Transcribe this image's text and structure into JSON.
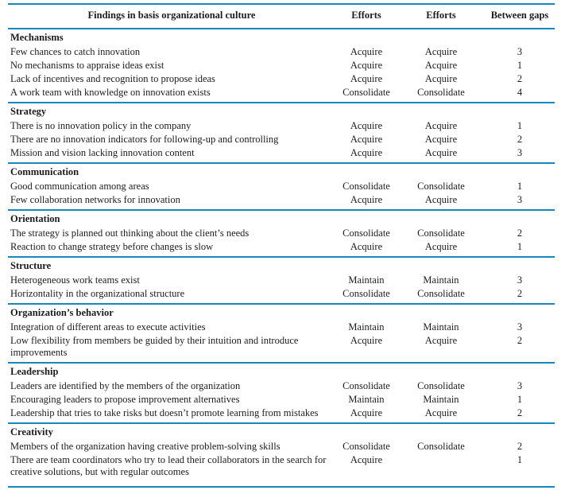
{
  "colors": {
    "rule": "#1787c0",
    "text": "#1c1c1c"
  },
  "table": {
    "headers": [
      "Findings in basis organizational culture",
      "Efforts",
      "Efforts",
      "Between gaps"
    ],
    "sections": [
      {
        "name": "Mechanisms",
        "rows": [
          {
            "finding": "Few chances to catch innovation",
            "effort1": "Acquire",
            "effort2": "Acquire",
            "gap": "3"
          },
          {
            "finding": "No mechanisms to appraise ideas exist",
            "effort1": "Acquire",
            "effort2": "Acquire",
            "gap": "1"
          },
          {
            "finding": "Lack of incentives and recognition to propose ideas",
            "effort1": "Acquire",
            "effort2": "Acquire",
            "gap": "2"
          },
          {
            "finding": "A work team with knowledge on innovation exists",
            "effort1": "Consolidate",
            "effort2": "Consolidate",
            "gap": "4"
          }
        ]
      },
      {
        "name": "Strategy",
        "rows": [
          {
            "finding": "There is no innovation policy in the company",
            "effort1": "Acquire",
            "effort2": "Acquire",
            "gap": "1"
          },
          {
            "finding": "There are no innovation indicators for following-up and controlling",
            "effort1": "Acquire",
            "effort2": "Acquire",
            "gap": "2"
          },
          {
            "finding": "Mission and vision lacking innovation content",
            "effort1": "Acquire",
            "effort2": "Acquire",
            "gap": "3"
          }
        ]
      },
      {
        "name": "Communication",
        "rows": [
          {
            "finding": "Good communication among areas",
            "effort1": "Consolidate",
            "effort2": "Consolidate",
            "gap": "1"
          },
          {
            "finding": "Few collaboration networks for innovation",
            "effort1": "Acquire",
            "effort2": "Acquire",
            "gap": "3"
          }
        ]
      },
      {
        "name": "Orientation",
        "rows": [
          {
            "finding": "The strategy is planned out thinking about the client’s needs",
            "effort1": "Consolidate",
            "effort2": "Consolidate",
            "gap": "2"
          },
          {
            "finding": "Reaction to change strategy before changes is slow",
            "effort1": "Acquire",
            "effort2": "Acquire",
            "gap": "1"
          }
        ]
      },
      {
        "name": "Structure",
        "rows": [
          {
            "finding": "Heterogeneous work teams exist",
            "effort1": "Maintain",
            "effort2": "Maintain",
            "gap": "3"
          },
          {
            "finding": "Horizontality in the organizational structure",
            "effort1": "Consolidate",
            "effort2": "Consolidate",
            "gap": "2"
          }
        ]
      },
      {
        "name": "Organization’s behavior",
        "rows": [
          {
            "finding": "Integration of different areas to execute activities",
            "effort1": "Maintain",
            "effort2": "Maintain",
            "gap": "3"
          },
          {
            "finding": "Low flexibility from members be guided by their intuition and introduce improvements",
            "effort1": "Acquire",
            "effort2": "Acquire",
            "gap": "2"
          }
        ]
      },
      {
        "name": "Leadership",
        "rows": [
          {
            "finding": "Leaders are identified by the members of the organization",
            "effort1": "Consolidate",
            "effort2": "Consolidate",
            "gap": "3"
          },
          {
            "finding": "Encouraging leaders to propose improvement alternatives",
            "effort1": "Maintain",
            "effort2": "Maintain",
            "gap": "1"
          },
          {
            "finding": "Leadership that tries to take risks but doesn’t promote learning from mistakes",
            "effort1": "Acquire",
            "effort2": "Acquire",
            "gap": "2"
          }
        ]
      },
      {
        "name": "Creativity",
        "rows": [
          {
            "finding": "Members of the organization having creative problem-solving skills",
            "effort1": "Consolidate",
            "effort2": "Consolidate",
            "gap": "2"
          },
          {
            "finding": "There are team coordinators who try to lead their collaborators in the search for creative solutions, but with regular outcomes",
            "effort1": "Acquire",
            "effort2": "",
            "gap": "1"
          }
        ]
      }
    ]
  }
}
